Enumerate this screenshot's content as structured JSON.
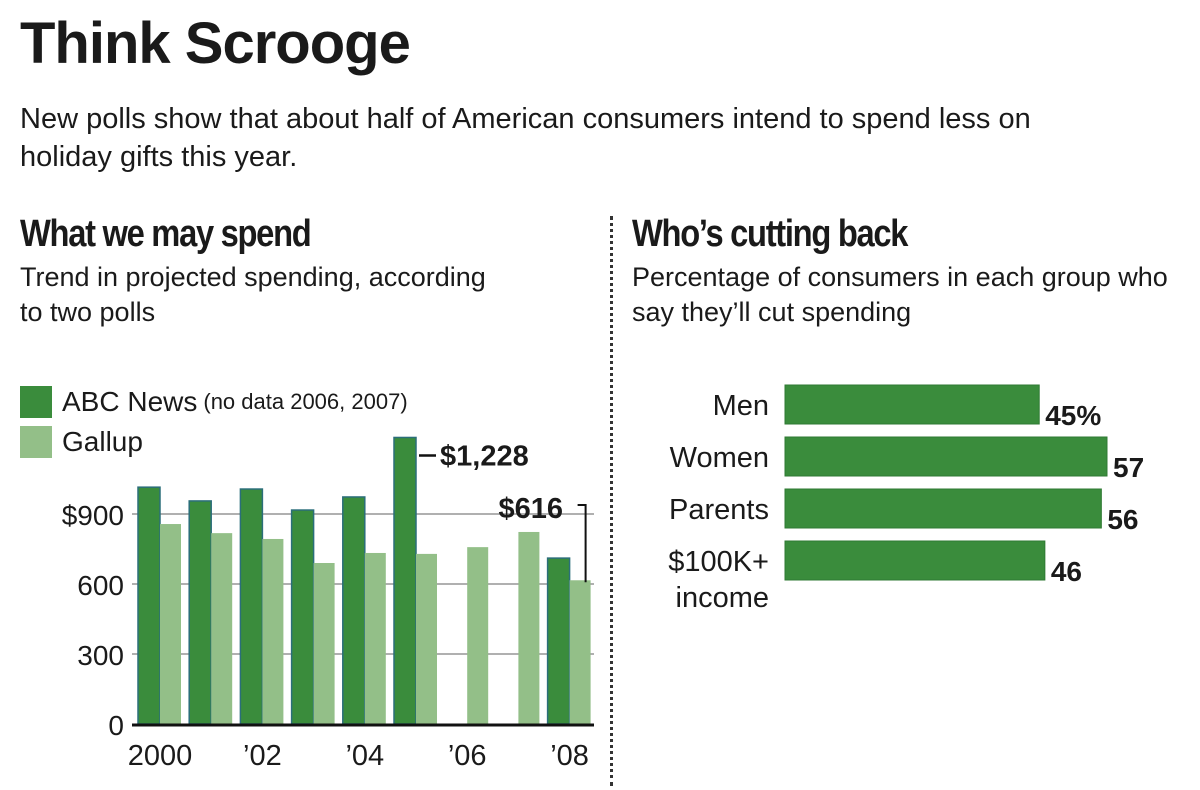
{
  "header": {
    "title": "Think Scrooge",
    "subtitle": "New polls show that about half of American consumers intend to spend less on holiday gifts this year."
  },
  "colors": {
    "abc": "#3a8c3c",
    "abc_outline": "#2b6e7a",
    "gallup": "#93bf88",
    "gridline": "#b0b0b0",
    "axis": "#111111",
    "bar_right": "#3a8c3c",
    "text": "#1a1a1a"
  },
  "left_panel": {
    "title": "What we may spend",
    "subtitle": "Trend in projected spending, according to two polls",
    "legend": [
      {
        "label": "ABC News",
        "note": "(no data 2006, 2007)",
        "color_key": "abc"
      },
      {
        "label": "Gallup",
        "note": "",
        "color_key": "gallup"
      }
    ]
  },
  "right_panel": {
    "title": "Who’s cutting back",
    "subtitle": "Percentage of consumers in each group who say they’ll cut spending"
  },
  "chart_data": [
    {
      "type": "bar",
      "title": "What we may spend",
      "subtitle": "Trend in projected spending, according to two polls",
      "xlabel": "",
      "ylabel": "",
      "categories": [
        "2000",
        "2001",
        "2002",
        "2003",
        "2004",
        "2005",
        "2006",
        "2007",
        "2008"
      ],
      "x_tick_labels": {
        "2000": "2000",
        "2002": "’02",
        "2004": "’04",
        "2006": "’06",
        "2008": "’08"
      },
      "y_ticks": [
        0,
        300,
        600,
        900
      ],
      "y_tick_labels": [
        "0",
        "300",
        "600",
        "$900"
      ],
      "ylim": [
        0,
        1300
      ],
      "grid": true,
      "legend": "top-left",
      "series": [
        {
          "name": "ABC News",
          "values": [
            1015,
            956,
            1007,
            917,
            973,
            1228,
            null,
            null,
            711
          ]
        },
        {
          "name": "Gallup",
          "values": [
            857,
            818,
            793,
            690,
            733,
            729,
            758,
            823,
            616
          ]
        }
      ],
      "annotations": [
        {
          "series": "ABC News",
          "category": "2005",
          "text": "$1,228"
        },
        {
          "series": "Gallup",
          "category": "2008",
          "text": "$616"
        }
      ]
    },
    {
      "type": "bar",
      "orientation": "horizontal",
      "title": "Who’s cutting back",
      "subtitle": "Percentage of consumers in each group who say they’ll cut spending",
      "categories": [
        "Men",
        "Women",
        "Parents",
        "$100K+ income"
      ],
      "category_lines": [
        [
          "Men"
        ],
        [
          "Women"
        ],
        [
          "Parents"
        ],
        [
          "$100K+",
          "income"
        ]
      ],
      "values": [
        45,
        57,
        56,
        46
      ],
      "value_labels": [
        "45%",
        "57",
        "56",
        "46"
      ],
      "xlim": [
        0,
        57
      ],
      "grid": false
    }
  ]
}
